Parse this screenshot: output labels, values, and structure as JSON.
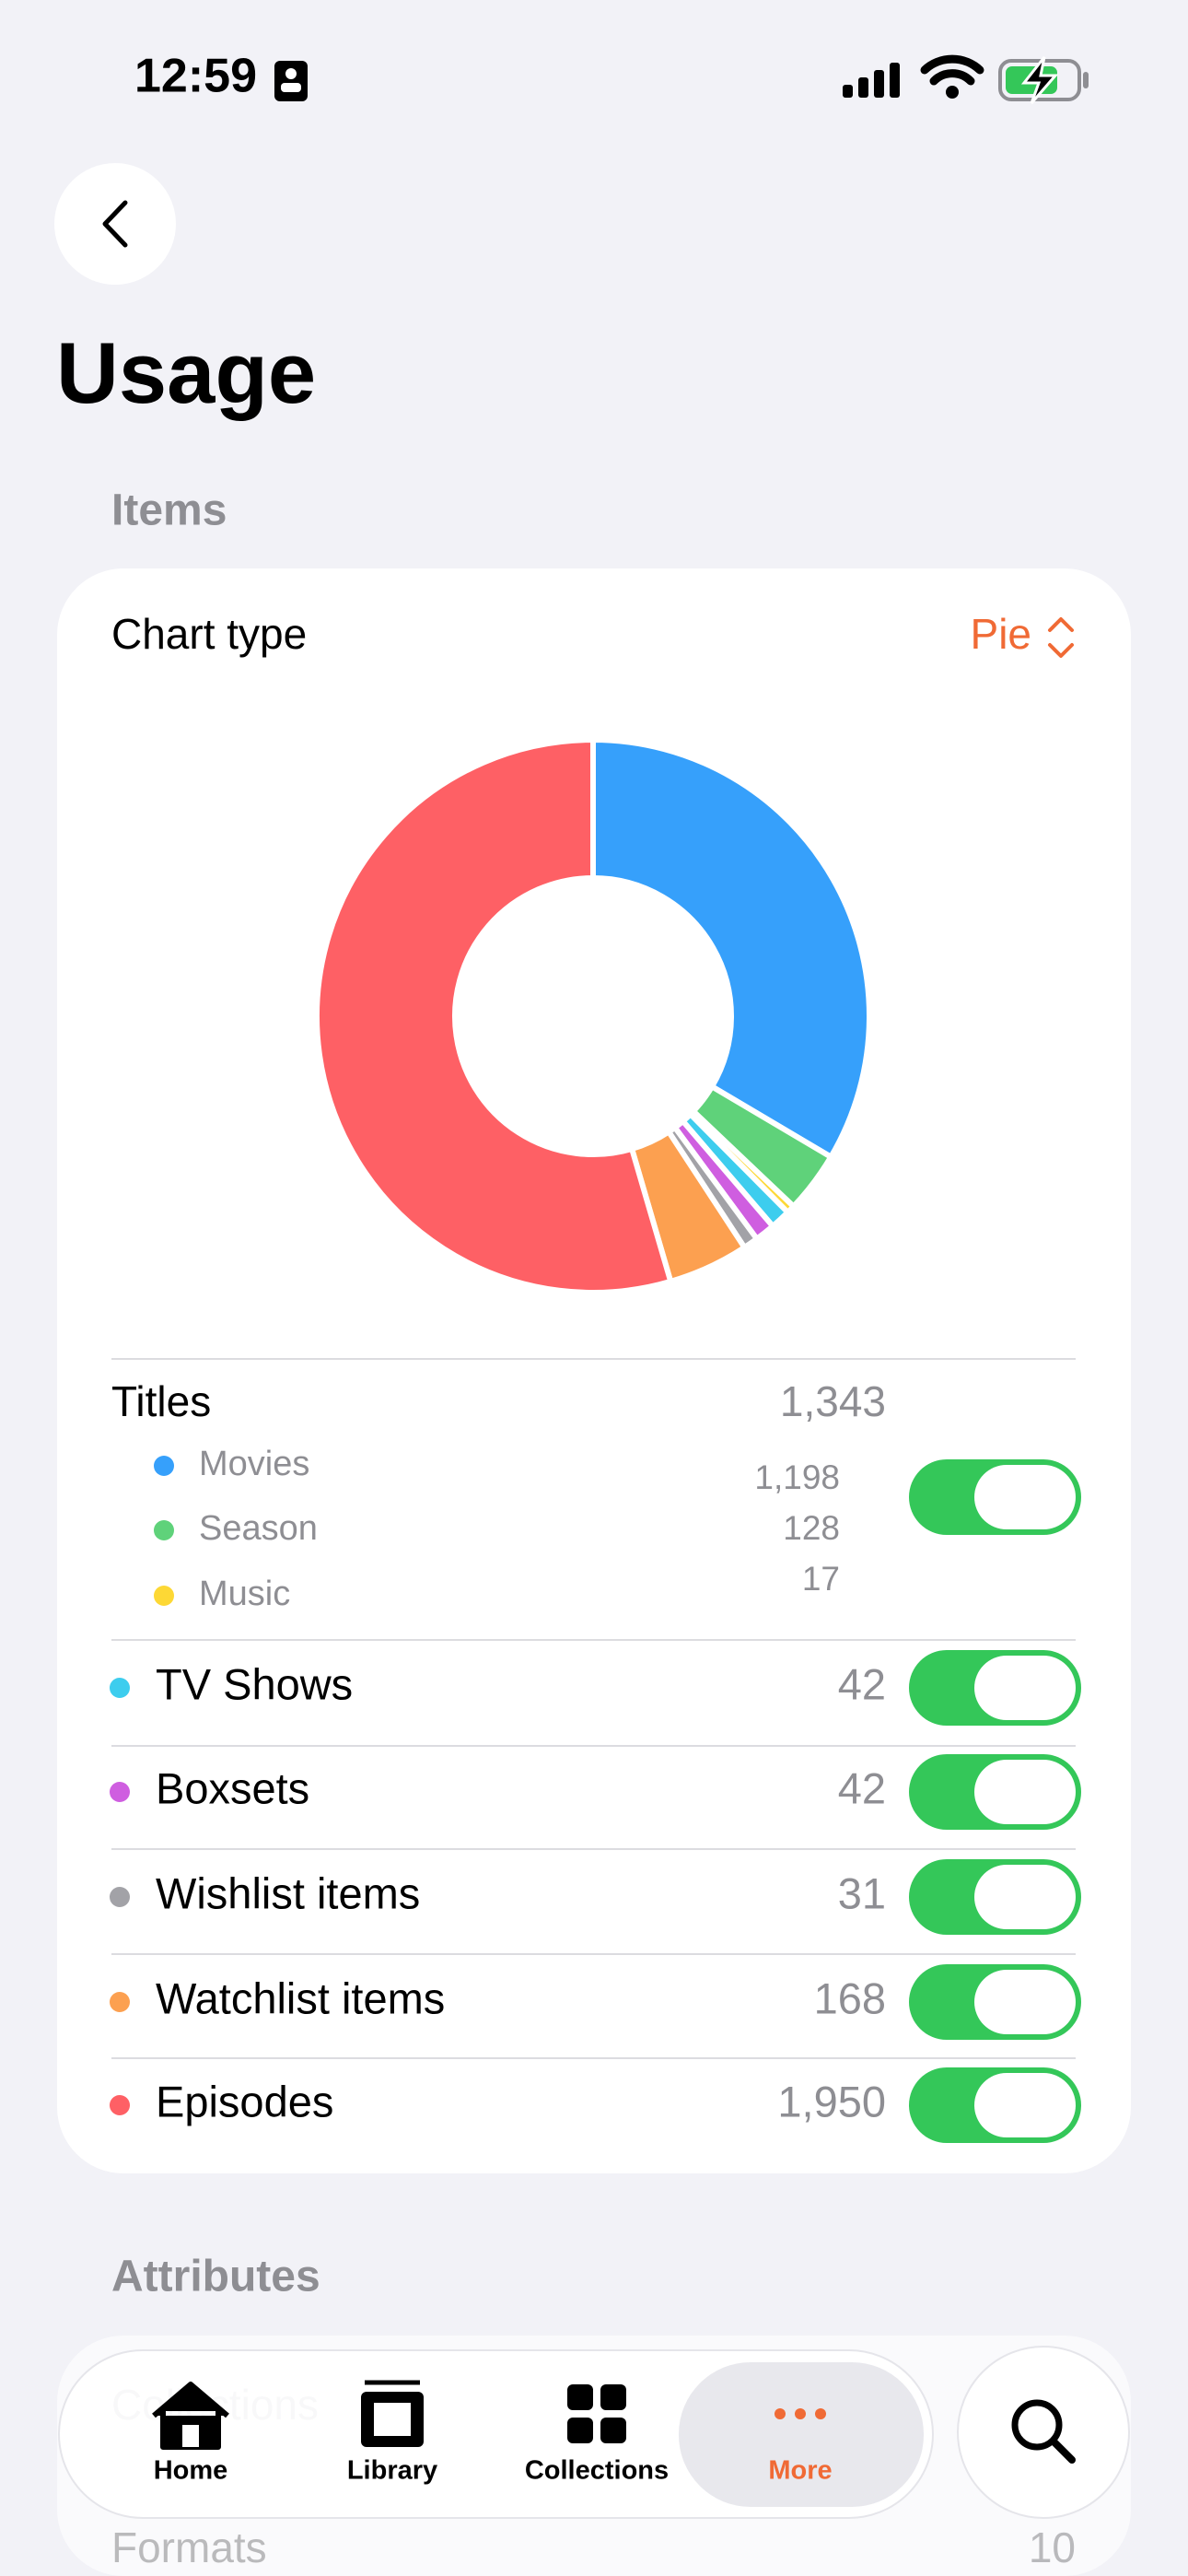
{
  "status_bar": {
    "time": "12:59"
  },
  "header": {
    "title": "Usage"
  },
  "items_section": {
    "title": "Items",
    "chart_type_label": "Chart type",
    "chart_type_value": "Pie"
  },
  "titles_group": {
    "name": "Titles",
    "total": "1,343"
  },
  "chart_data": {
    "type": "pie",
    "categories": [
      "Movies",
      "Season",
      "Music",
      "TV Shows",
      "Boxsets",
      "Wishlist items",
      "Watchlist items",
      "Episodes"
    ],
    "values": [
      1198,
      128,
      17,
      42,
      42,
      31,
      168,
      1950
    ],
    "value_labels": [
      "1,198",
      "128",
      "17",
      "42",
      "42",
      "31",
      "168",
      "1,950"
    ],
    "colors": [
      "#36a0fb",
      "#5fd27a",
      "#fdd835",
      "#3dcdee",
      "#cf5ee0",
      "#a2a2a7",
      "#fca050",
      "#fe6065"
    ]
  },
  "attributes_section": {
    "title": "Attributes",
    "rows": [
      {
        "name": "Collections"
      },
      {
        "name": "Formats",
        "value": "10"
      }
    ]
  },
  "tab_bar": {
    "tabs": [
      "Home",
      "Library",
      "Collections",
      "More"
    ],
    "selected_tab": 3
  }
}
